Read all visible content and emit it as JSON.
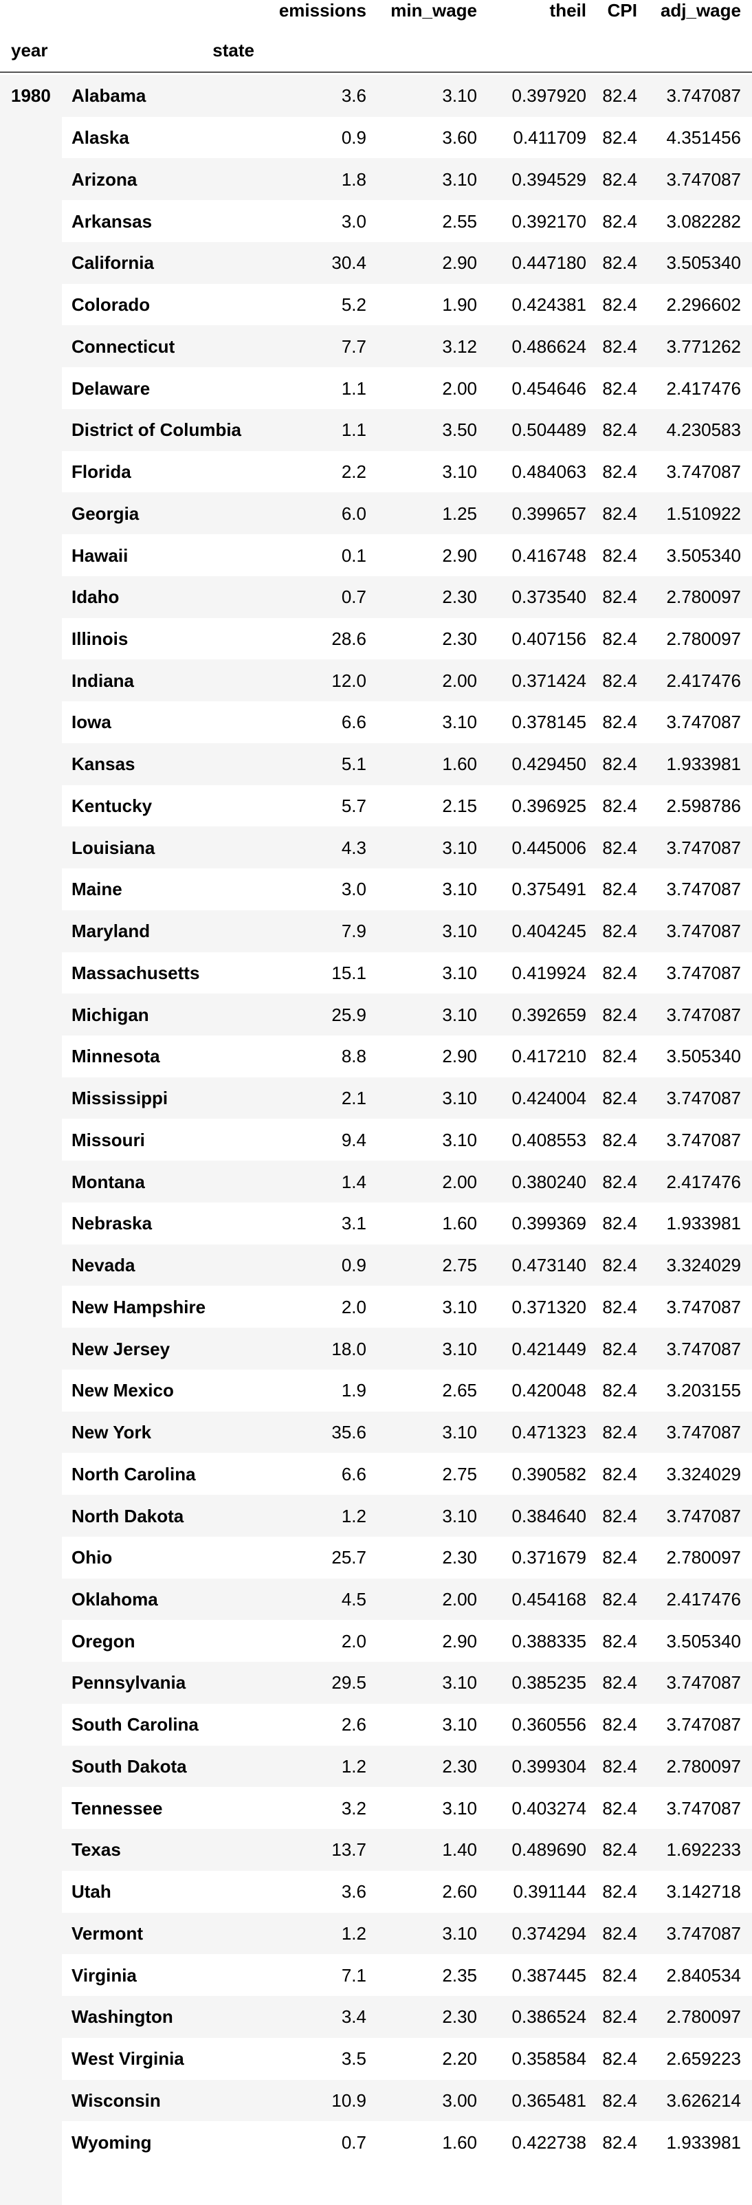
{
  "table": {
    "columns": [
      "emissions",
      "min_wage",
      "theil",
      "CPI",
      "adj_wage"
    ],
    "index_names": [
      "year",
      "state"
    ],
    "year": "1980",
    "rows": [
      [
        "Alabama",
        "3.6",
        "3.10",
        "0.397920",
        "82.4",
        "3.747087"
      ],
      [
        "Alaska",
        "0.9",
        "3.60",
        "0.411709",
        "82.4",
        "4.351456"
      ],
      [
        "Arizona",
        "1.8",
        "3.10",
        "0.394529",
        "82.4",
        "3.747087"
      ],
      [
        "Arkansas",
        "3.0",
        "2.55",
        "0.392170",
        "82.4",
        "3.082282"
      ],
      [
        "California",
        "30.4",
        "2.90",
        "0.447180",
        "82.4",
        "3.505340"
      ],
      [
        "Colorado",
        "5.2",
        "1.90",
        "0.424381",
        "82.4",
        "2.296602"
      ],
      [
        "Connecticut",
        "7.7",
        "3.12",
        "0.486624",
        "82.4",
        "3.771262"
      ],
      [
        "Delaware",
        "1.1",
        "2.00",
        "0.454646",
        "82.4",
        "2.417476"
      ],
      [
        "District of Columbia",
        "1.1",
        "3.50",
        "0.504489",
        "82.4",
        "4.230583"
      ],
      [
        "Florida",
        "2.2",
        "3.10",
        "0.484063",
        "82.4",
        "3.747087"
      ],
      [
        "Georgia",
        "6.0",
        "1.25",
        "0.399657",
        "82.4",
        "1.510922"
      ],
      [
        "Hawaii",
        "0.1",
        "2.90",
        "0.416748",
        "82.4",
        "3.505340"
      ],
      [
        "Idaho",
        "0.7",
        "2.30",
        "0.373540",
        "82.4",
        "2.780097"
      ],
      [
        "Illinois",
        "28.6",
        "2.30",
        "0.407156",
        "82.4",
        "2.780097"
      ],
      [
        "Indiana",
        "12.0",
        "2.00",
        "0.371424",
        "82.4",
        "2.417476"
      ],
      [
        "Iowa",
        "6.6",
        "3.10",
        "0.378145",
        "82.4",
        "3.747087"
      ],
      [
        "Kansas",
        "5.1",
        "1.60",
        "0.429450",
        "82.4",
        "1.933981"
      ],
      [
        "Kentucky",
        "5.7",
        "2.15",
        "0.396925",
        "82.4",
        "2.598786"
      ],
      [
        "Louisiana",
        "4.3",
        "3.10",
        "0.445006",
        "82.4",
        "3.747087"
      ],
      [
        "Maine",
        "3.0",
        "3.10",
        "0.375491",
        "82.4",
        "3.747087"
      ],
      [
        "Maryland",
        "7.9",
        "3.10",
        "0.404245",
        "82.4",
        "3.747087"
      ],
      [
        "Massachusetts",
        "15.1",
        "3.10",
        "0.419924",
        "82.4",
        "3.747087"
      ],
      [
        "Michigan",
        "25.9",
        "3.10",
        "0.392659",
        "82.4",
        "3.747087"
      ],
      [
        "Minnesota",
        "8.8",
        "2.90",
        "0.417210",
        "82.4",
        "3.505340"
      ],
      [
        "Mississippi",
        "2.1",
        "3.10",
        "0.424004",
        "82.4",
        "3.747087"
      ],
      [
        "Missouri",
        "9.4",
        "3.10",
        "0.408553",
        "82.4",
        "3.747087"
      ],
      [
        "Montana",
        "1.4",
        "2.00",
        "0.380240",
        "82.4",
        "2.417476"
      ],
      [
        "Nebraska",
        "3.1",
        "1.60",
        "0.399369",
        "82.4",
        "1.933981"
      ],
      [
        "Nevada",
        "0.9",
        "2.75",
        "0.473140",
        "82.4",
        "3.324029"
      ],
      [
        "New Hampshire",
        "2.0",
        "3.10",
        "0.371320",
        "82.4",
        "3.747087"
      ],
      [
        "New Jersey",
        "18.0",
        "3.10",
        "0.421449",
        "82.4",
        "3.747087"
      ],
      [
        "New Mexico",
        "1.9",
        "2.65",
        "0.420048",
        "82.4",
        "3.203155"
      ],
      [
        "New York",
        "35.6",
        "3.10",
        "0.471323",
        "82.4",
        "3.747087"
      ],
      [
        "North Carolina",
        "6.6",
        "2.75",
        "0.390582",
        "82.4",
        "3.324029"
      ],
      [
        "North Dakota",
        "1.2",
        "3.10",
        "0.384640",
        "82.4",
        "3.747087"
      ],
      [
        "Ohio",
        "25.7",
        "2.30",
        "0.371679",
        "82.4",
        "2.780097"
      ],
      [
        "Oklahoma",
        "4.5",
        "2.00",
        "0.454168",
        "82.4",
        "2.417476"
      ],
      [
        "Oregon",
        "2.0",
        "2.90",
        "0.388335",
        "82.4",
        "3.505340"
      ],
      [
        "Pennsylvania",
        "29.5",
        "3.10",
        "0.385235",
        "82.4",
        "3.747087"
      ],
      [
        "South Carolina",
        "2.6",
        "3.10",
        "0.360556",
        "82.4",
        "3.747087"
      ],
      [
        "South Dakota",
        "1.2",
        "2.30",
        "0.399304",
        "82.4",
        "2.780097"
      ],
      [
        "Tennessee",
        "3.2",
        "3.10",
        "0.403274",
        "82.4",
        "3.747087"
      ],
      [
        "Texas",
        "13.7",
        "1.40",
        "0.489690",
        "82.4",
        "1.692233"
      ],
      [
        "Utah",
        "3.6",
        "2.60",
        "0.391144",
        "82.4",
        "3.142718"
      ],
      [
        "Vermont",
        "1.2",
        "3.10",
        "0.374294",
        "82.4",
        "3.747087"
      ],
      [
        "Virginia",
        "7.1",
        "2.35",
        "0.387445",
        "82.4",
        "2.840534"
      ],
      [
        "Washington",
        "3.4",
        "2.30",
        "0.386524",
        "82.4",
        "2.780097"
      ],
      [
        "West Virginia",
        "3.5",
        "2.20",
        "0.358584",
        "82.4",
        "2.659223"
      ],
      [
        "Wisconsin",
        "10.9",
        "3.00",
        "0.365481",
        "82.4",
        "3.626214"
      ],
      [
        "Wyoming",
        "0.7",
        "1.60",
        "0.422738",
        "82.4",
        "1.933981"
      ]
    ]
  }
}
